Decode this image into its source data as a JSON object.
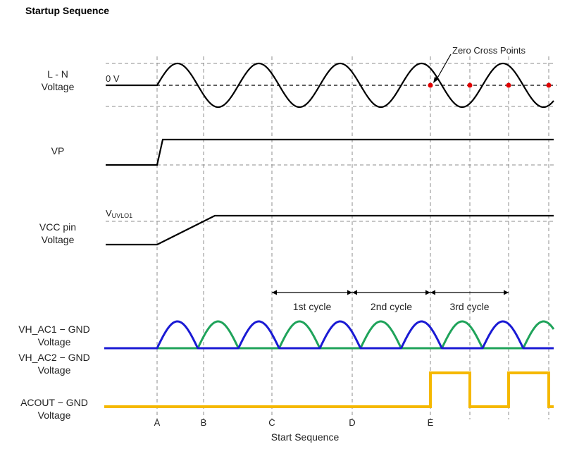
{
  "title": "Startup Sequence",
  "labels": {
    "ln": [
      "L - N",
      "Voltage"
    ],
    "zero_v": "0 V",
    "zero_cross": "Zero Cross Points",
    "vp": "VP",
    "uvlo_main": "V",
    "uvlo_sub": "UVLO1",
    "vcc": [
      "VCC pin",
      "Voltage"
    ],
    "vhac1": [
      "VH_AC1 − GND",
      "Voltage"
    ],
    "vhac2": [
      "VH_AC2 − GND",
      "Voltage"
    ],
    "acout": [
      "ACOUT − GND",
      "Voltage"
    ],
    "x_axis": "Start Sequence"
  },
  "markers": [
    "A",
    "B",
    "C",
    "D",
    "E"
  ],
  "cycles": [
    "1st cycle",
    "2nd cycle",
    "3rd cycle"
  ],
  "colors": {
    "vhac1": "#1a1ad4",
    "vhac2": "#1fa35a",
    "acout": "#f5b800",
    "acout_label": "#f0a830",
    "vhac_label": "#1a1ad4",
    "vhac2_label": "#1fa35a",
    "zero_cross_dot": "#e00000"
  }
}
